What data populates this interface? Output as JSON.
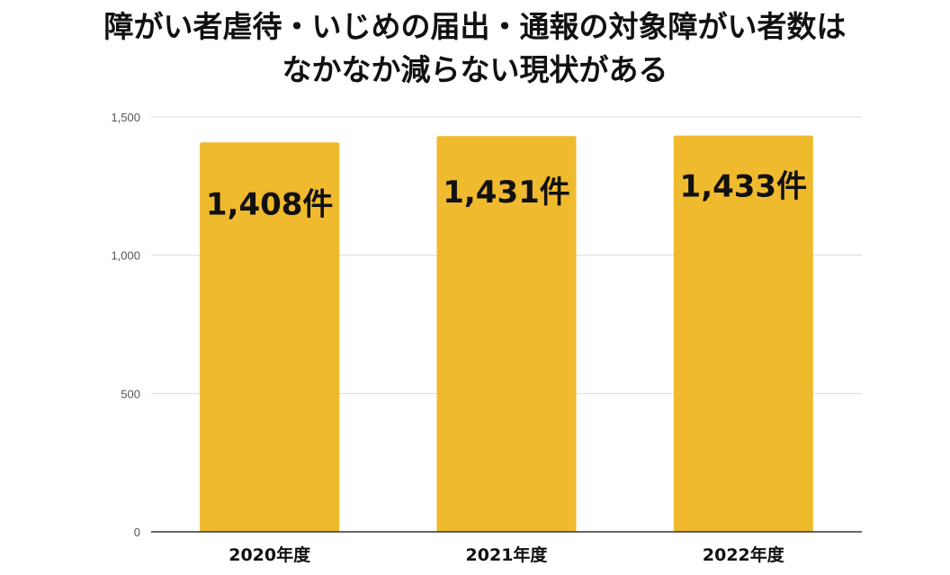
{
  "title_lines": [
    "障がい者虐待・いじめの届出・通報の対象障がい者数は",
    "なかなか減らない現状がある"
  ],
  "colors": {
    "bar": "#F0BA2E",
    "grid": "#D9D9D9",
    "axis": "#333333"
  },
  "chart_data": {
    "type": "bar",
    "title": "障がい者虐待・いじめの届出・通報の対象障がい者数は なかなか減らない現状がある",
    "categories": [
      "2020年度",
      "2021年度",
      "2022年度"
    ],
    "values": [
      1408,
      1431,
      1433
    ],
    "data_labels": [
      "1,408件",
      "1,431件",
      "1,433件"
    ],
    "ylim": [
      0,
      1500
    ],
    "yticks": [
      0,
      500,
      1000,
      1500
    ],
    "ytick_labels": [
      "0",
      "500",
      "1,000",
      "1,500"
    ],
    "grid": true,
    "legend": "none",
    "xlabel": "",
    "ylabel": ""
  }
}
